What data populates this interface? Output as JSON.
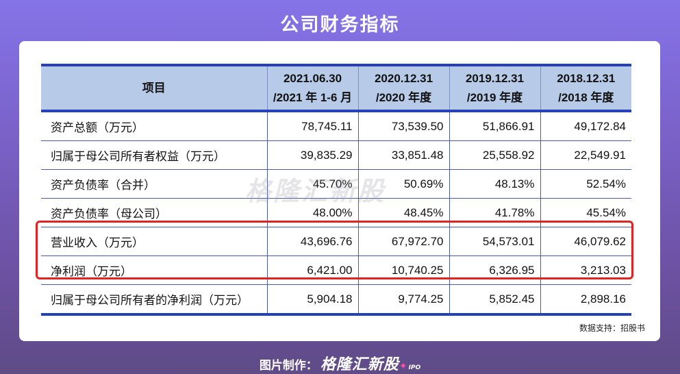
{
  "title": "公司财务指标",
  "table": {
    "header": {
      "item": "项目",
      "col1": [
        "2021.06.30",
        "/2021 年 1-6 月"
      ],
      "col2": [
        "2020.12.31",
        "/2020 年度"
      ],
      "col3": [
        "2019.12.31",
        "/2019 年度"
      ],
      "col4": [
        "2018.12.31",
        "/2018 年度"
      ]
    },
    "rows": [
      {
        "label": "资产总额（万元）",
        "v": [
          "78,745.11",
          "73,539.50",
          "51,866.91",
          "49,172.84"
        ]
      },
      {
        "label": "归属于母公司所有者权益（万元）",
        "v": [
          "39,835.29",
          "33,851.48",
          "25,558.92",
          "22,549.91"
        ]
      },
      {
        "label": "资产负债率（合并）",
        "v": [
          "45.70%",
          "50.69%",
          "48.13%",
          "52.54%"
        ]
      },
      {
        "label": "资产负债率（母公司）",
        "v": [
          "48.00%",
          "48.45%",
          "41.78%",
          "45.54%"
        ]
      },
      {
        "label": "营业收入（万元）",
        "v": [
          "43,696.76",
          "67,972.70",
          "54,573.01",
          "46,079.62"
        ]
      },
      {
        "label": "净利润（万元）",
        "v": [
          "6,421.00",
          "10,740.25",
          "6,326.95",
          "3,213.03"
        ]
      },
      {
        "label": "归属于母公司所有者的净利润（万元）",
        "v": [
          "5,904.18",
          "9,774.25",
          "5,852.45",
          "2,898.16"
        ]
      }
    ]
  },
  "watermark": "格隆汇新股",
  "source": "数据支持：招股书",
  "footer": {
    "prefix": "图片制作：",
    "brand": "格隆汇新股",
    "ipo": "IPO"
  }
}
